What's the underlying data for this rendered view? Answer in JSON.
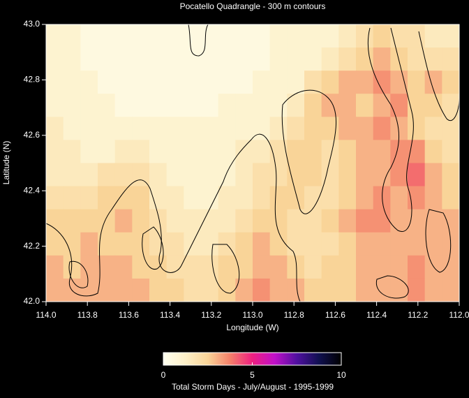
{
  "chart_data": {
    "type": "heatmap",
    "title": "Pocatello Quadrangle  -  300 m contours",
    "x_label": "Longitude (W)",
    "y_label": "Latitude (N)",
    "colorbar_label": "Total Storm Days  -  July/August  -  1995-1999",
    "xlim": [
      114.0,
      112.0
    ],
    "xticks": [
      {
        "value": 114.0,
        "label": "114.0"
      },
      113.8,
      113.6,
      113.4,
      113.2,
      {
        "value": 113.0,
        "label": "113.0"
      },
      112.8,
      112.6,
      112.4,
      112.2,
      {
        "value": 112.0,
        "label": "112.0"
      }
    ],
    "ylim": [
      42.0,
      43.0
    ],
    "yticks": [
      {
        "value": 42.0,
        "label": "42.0"
      },
      42.2,
      42.4,
      42.6,
      42.8,
      {
        "value": 43.0,
        "label": "43.0"
      }
    ],
    "zlim": [
      0,
      10
    ],
    "zticks": [
      0,
      5,
      10
    ],
    "colors": [
      "#fffff0",
      "#fdf0c8",
      "#f9d498",
      "#f4806a",
      "#ee2080",
      "#c010c8",
      "#5010a0",
      "#101050",
      "#000000"
    ],
    "z": [
      [
        1,
        1,
        0.5,
        0.5,
        0.5,
        0.5,
        0.5,
        0.5,
        0.5,
        0.5,
        0.5,
        0.5,
        0.5,
        1,
        1,
        1,
        1,
        1.5,
        2,
        2.5,
        2,
        2,
        1.5,
        1.5
      ],
      [
        1,
        1,
        0.5,
        0.5,
        0.5,
        0.5,
        0.5,
        0.5,
        0.5,
        0.5,
        0.5,
        0.5,
        0.5,
        1,
        1,
        1,
        1.5,
        2,
        2.5,
        3,
        2.5,
        2,
        2,
        2
      ],
      [
        1,
        1,
        1,
        0.5,
        0.5,
        0.5,
        0.5,
        0.5,
        0.5,
        0.5,
        0.5,
        0.5,
        1,
        1,
        1,
        2,
        2.5,
        3,
        3,
        3.5,
        3,
        2.5,
        3,
        2.5
      ],
      [
        1,
        1,
        1,
        1,
        0.5,
        0.5,
        0.5,
        0.5,
        0.5,
        0.5,
        1,
        1,
        1,
        1,
        1.5,
        2.5,
        3,
        3,
        2.5,
        3,
        3.5,
        2.5,
        2.5,
        2
      ],
      [
        1.5,
        1,
        1,
        1,
        1,
        1,
        1,
        1,
        1,
        1,
        1,
        1,
        1,
        1.5,
        2,
        2.5,
        2.5,
        3,
        3,
        3.5,
        3,
        2.5,
        2,
        2
      ],
      [
        1.5,
        1.5,
        1,
        1,
        1.5,
        1.5,
        1,
        1,
        1,
        1,
        1,
        1.5,
        1.5,
        2,
        2.5,
        2.5,
        2,
        2.5,
        3,
        3,
        3.5,
        3.5,
        2.5,
        2
      ],
      [
        1.5,
        1.5,
        1.5,
        2,
        2,
        2,
        1.5,
        1,
        1,
        1,
        1,
        1.5,
        2,
        2,
        2.5,
        2.5,
        2,
        2.5,
        3,
        3,
        3.5,
        4,
        3,
        2.5
      ],
      [
        2,
        2,
        2,
        2.5,
        2.5,
        2.5,
        1.5,
        1.5,
        1,
        1,
        1.5,
        1.5,
        2,
        2.5,
        2.5,
        2,
        2,
        2.5,
        3,
        3.5,
        3,
        3.5,
        3,
        2.5
      ],
      [
        2.5,
        2.5,
        2.5,
        2.5,
        3,
        2.5,
        2,
        1.5,
        1.5,
        1.5,
        1.5,
        2,
        2.5,
        2.5,
        2,
        2,
        2.5,
        3,
        3.5,
        3.5,
        3,
        3,
        3,
        3
      ],
      [
        2.5,
        2.5,
        3,
        2.5,
        2.5,
        2.5,
        2,
        2,
        1.5,
        1.5,
        2,
        2.5,
        3,
        2.5,
        2,
        2,
        2,
        2.5,
        3,
        3,
        3,
        3,
        3,
        3
      ],
      [
        3,
        2.5,
        3,
        3,
        3,
        2.5,
        2.5,
        2,
        2,
        2,
        2.5,
        2.5,
        3,
        3,
        2.5,
        2,
        2.5,
        2.5,
        3,
        3,
        3,
        3.5,
        3,
        3
      ],
      [
        3,
        3,
        3,
        3,
        3,
        3,
        2.5,
        2.5,
        2,
        2,
        2.5,
        3,
        3.5,
        3,
        3,
        2.5,
        2.5,
        2.5,
        3,
        3,
        3,
        3.5,
        3,
        3
      ]
    ]
  }
}
